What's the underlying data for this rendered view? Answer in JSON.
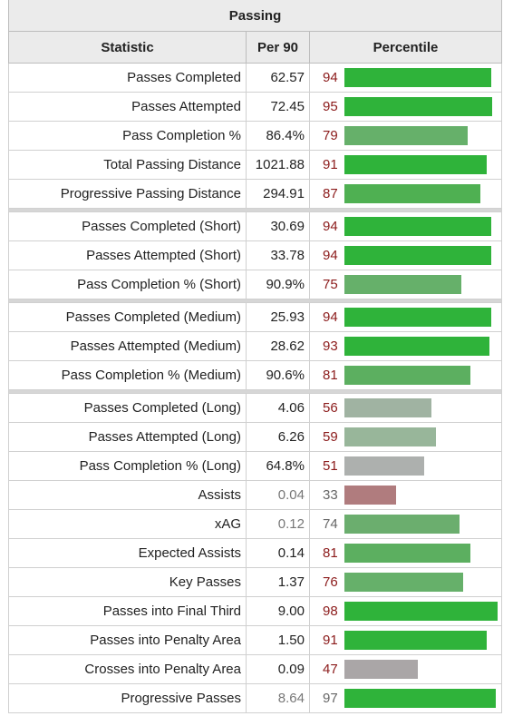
{
  "table": {
    "caption": "Passing",
    "headers": {
      "statistic": "Statistic",
      "per90": "Per 90",
      "percentile": "Percentile"
    },
    "groups": [
      [
        {
          "statistic": "Passes Completed",
          "per90": "62.57",
          "percentile": 94,
          "color": "#2fb33a"
        },
        {
          "statistic": "Passes Attempted",
          "per90": "72.45",
          "percentile": 95,
          "color": "#2fb33a"
        },
        {
          "statistic": "Pass Completion %",
          "per90": "86.4%",
          "percentile": 79,
          "color": "#66b06a"
        },
        {
          "statistic": "Total Passing Distance",
          "per90": "1021.88",
          "percentile": 91,
          "color": "#2fb33a"
        },
        {
          "statistic": "Progressive Passing Distance",
          "per90": "294.91",
          "percentile": 87,
          "color": "#4fb052"
        }
      ],
      [
        {
          "statistic": "Passes Completed (Short)",
          "per90": "30.69",
          "percentile": 94,
          "color": "#2fb33a"
        },
        {
          "statistic": "Passes Attempted (Short)",
          "per90": "33.78",
          "percentile": 94,
          "color": "#2fb33a"
        },
        {
          "statistic": "Pass Completion % (Short)",
          "per90": "90.9%",
          "percentile": 75,
          "color": "#66b06a"
        }
      ],
      [
        {
          "statistic": "Passes Completed (Medium)",
          "per90": "25.93",
          "percentile": 94,
          "color": "#2fb33a"
        },
        {
          "statistic": "Passes Attempted (Medium)",
          "per90": "28.62",
          "percentile": 93,
          "color": "#2fb33a"
        },
        {
          "statistic": "Pass Completion % (Medium)",
          "per90": "90.6%",
          "percentile": 81,
          "color": "#5caf60"
        }
      ],
      [
        {
          "statistic": "Passes Completed (Long)",
          "per90": "4.06",
          "percentile": 56,
          "color": "#a0b3a2"
        },
        {
          "statistic": "Passes Attempted (Long)",
          "per90": "6.26",
          "percentile": 59,
          "color": "#98b69a"
        },
        {
          "statistic": "Pass Completion % (Long)",
          "per90": "64.8%",
          "percentile": 51,
          "color": "#adb0ae"
        },
        {
          "statistic": "Assists",
          "per90": "0.04",
          "percentile": 33,
          "color": "#b07c7e",
          "muted": true
        },
        {
          "statistic": "xAG",
          "per90": "0.12",
          "percentile": 74,
          "color": "#6bae6e",
          "muted": true
        },
        {
          "statistic": "Expected Assists",
          "per90": "0.14",
          "percentile": 81,
          "color": "#5caf60"
        },
        {
          "statistic": "Key Passes",
          "per90": "1.37",
          "percentile": 76,
          "color": "#66b06a"
        },
        {
          "statistic": "Passes into Final Third",
          "per90": "9.00",
          "percentile": 98,
          "color": "#2fb33a"
        },
        {
          "statistic": "Passes into Penalty Area",
          "per90": "1.50",
          "percentile": 91,
          "color": "#2fb33a"
        },
        {
          "statistic": "Crosses into Penalty Area",
          "per90": "0.09",
          "percentile": 47,
          "color": "#aaa6a7"
        },
        {
          "statistic": "Progressive Passes",
          "per90": "8.64",
          "percentile": 97,
          "color": "#2fb33a",
          "muted": true
        }
      ]
    ]
  }
}
